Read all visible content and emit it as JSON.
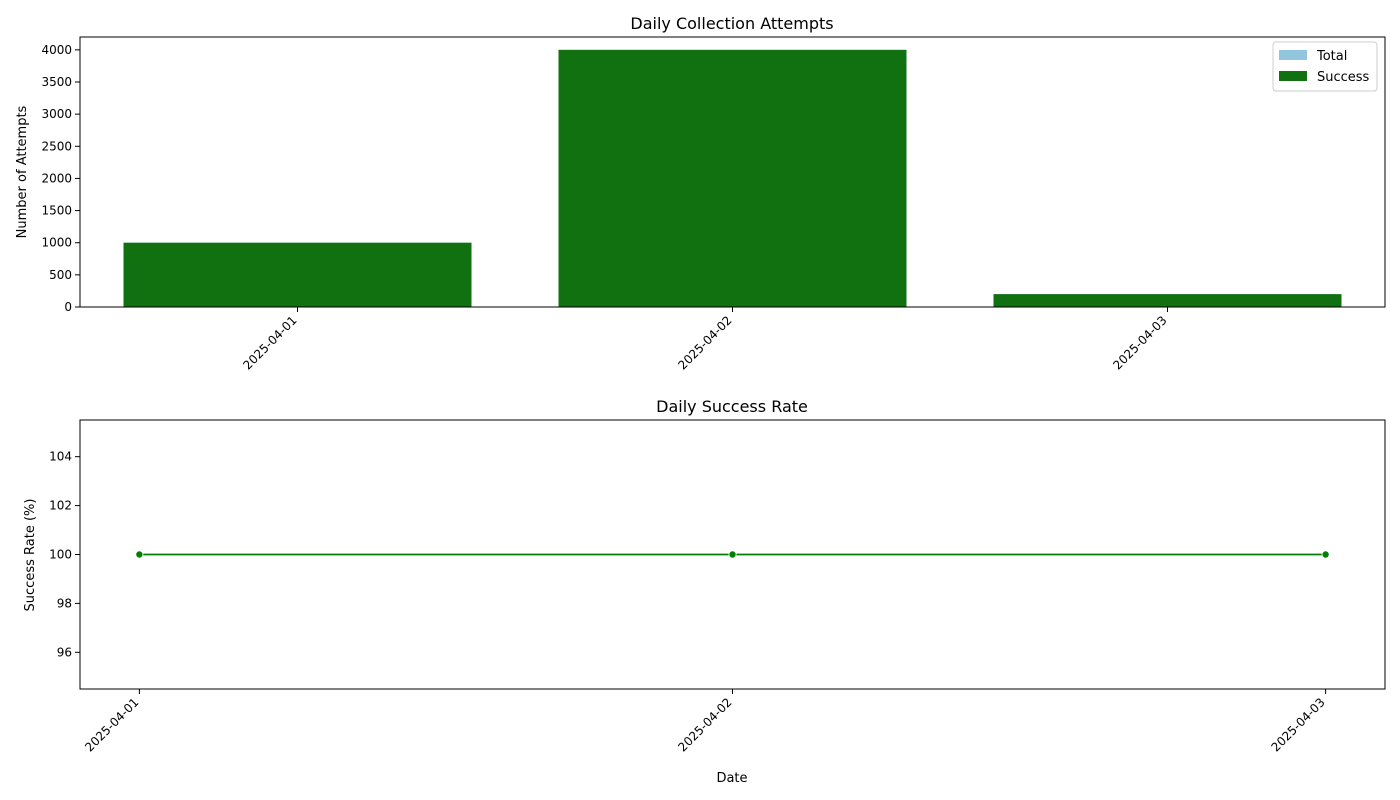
{
  "chart_data": [
    {
      "type": "bar",
      "title": "Daily Collection Attempts",
      "xlabel": "",
      "ylabel": "Number of Attempts",
      "categories": [
        "2025-04-01",
        "2025-04-02",
        "2025-04-03"
      ],
      "series": [
        {
          "name": "Total",
          "values": [
            1000,
            4000,
            200
          ],
          "color": "#92c5de"
        },
        {
          "name": "Success",
          "values": [
            1000,
            4000,
            200
          ],
          "color": "#117111"
        }
      ],
      "ylim": [
        0,
        4200
      ],
      "yticks": [
        0,
        500,
        1000,
        1500,
        2000,
        2500,
        3000,
        3500,
        4000
      ],
      "legend_position": "top-right",
      "grid": false
    },
    {
      "type": "line",
      "title": "Daily Success Rate",
      "xlabel": "Date",
      "ylabel": "Success Rate (%)",
      "x": [
        "2025-04-01",
        "2025-04-02",
        "2025-04-03"
      ],
      "series": [
        {
          "values": [
            100,
            100,
            100
          ],
          "color": "#008000"
        }
      ],
      "ylim": [
        94.5,
        105.5
      ],
      "yticks": [
        96,
        98,
        100,
        102,
        104
      ],
      "grid": false
    }
  ]
}
